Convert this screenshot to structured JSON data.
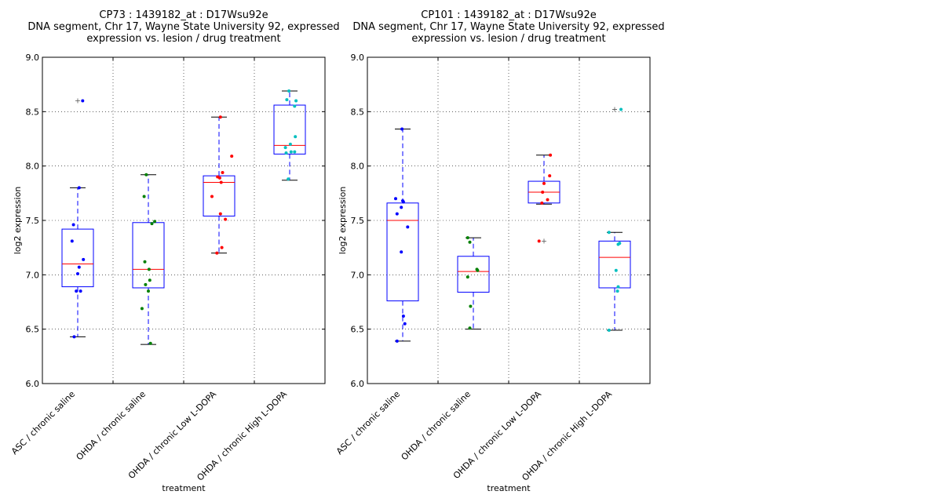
{
  "chart_data": [
    {
      "type": "boxplot",
      "title_lines": [
        "CP73 : 1439182_at : D17Wsu92e",
        "DNA segment, Chr 17, Wayne State University 92, expressed",
        "expression vs. lesion / drug treatment"
      ],
      "xlabel": "treatment",
      "ylabel": "log2 expression",
      "ylim": [
        6.0,
        9.0
      ],
      "yticks": [
        "6.0",
        "6.5",
        "7.0",
        "7.5",
        "8.0",
        "8.5",
        "9.0"
      ],
      "grid": true,
      "categories": [
        "ASC / chronic saline",
        "OHDA / chronic saline",
        "OHDA / chronic Low L-DOPA",
        "OHDA / chronic High L-DOPA"
      ],
      "point_colors": [
        "#0000ff",
        "#008000",
        "#ff0000",
        "#00bfbf"
      ],
      "boxes": [
        {
          "q1": 6.89,
          "median": 7.1,
          "q3": 7.42,
          "whisker_low": 6.43,
          "whisker_high": 7.8,
          "outliers": [
            8.6
          ]
        },
        {
          "q1": 6.88,
          "median": 7.05,
          "q3": 7.48,
          "whisker_low": 6.36,
          "whisker_high": 7.92,
          "outliers": []
        },
        {
          "q1": 7.54,
          "median": 7.85,
          "q3": 7.91,
          "whisker_low": 7.2,
          "whisker_high": 8.45,
          "outliers": []
        },
        {
          "q1": 8.11,
          "median": 8.19,
          "q3": 8.56,
          "whisker_low": 7.87,
          "whisker_high": 8.69,
          "outliers": []
        }
      ],
      "points": [
        [
          {
            "dx": -0.05,
            "y": 6.43
          },
          {
            "dx": -0.02,
            "y": 6.85
          },
          {
            "dx": 0.04,
            "y": 6.85
          },
          {
            "dx": 0.0,
            "y": 7.01
          },
          {
            "dx": 0.02,
            "y": 7.07
          },
          {
            "dx": 0.08,
            "y": 7.14
          },
          {
            "dx": -0.08,
            "y": 7.31
          },
          {
            "dx": -0.06,
            "y": 7.46
          },
          {
            "dx": 0.02,
            "y": 7.8
          },
          {
            "dx": 0.07,
            "y": 8.6
          }
        ],
        [
          {
            "dx": -0.09,
            "y": 6.69
          },
          {
            "dx": 0.03,
            "y": 6.37
          },
          {
            "dx": 0.0,
            "y": 6.85
          },
          {
            "dx": -0.04,
            "y": 6.91
          },
          {
            "dx": 0.02,
            "y": 6.95
          },
          {
            "dx": 0.01,
            "y": 7.05
          },
          {
            "dx": -0.05,
            "y": 7.12
          },
          {
            "dx": 0.05,
            "y": 7.47
          },
          {
            "dx": 0.09,
            "y": 7.49
          },
          {
            "dx": -0.06,
            "y": 7.72
          },
          {
            "dx": -0.03,
            "y": 7.92
          }
        ],
        [
          {
            "dx": -0.03,
            "y": 7.2
          },
          {
            "dx": 0.04,
            "y": 7.25
          },
          {
            "dx": 0.09,
            "y": 7.51
          },
          {
            "dx": 0.02,
            "y": 7.56
          },
          {
            "dx": -0.1,
            "y": 7.72
          },
          {
            "dx": 0.03,
            "y": 7.85
          },
          {
            "dx": 0.01,
            "y": 7.89
          },
          {
            "dx": -0.02,
            "y": 7.9
          },
          {
            "dx": 0.05,
            "y": 7.94
          },
          {
            "dx": 0.18,
            "y": 8.09
          },
          {
            "dx": 0.02,
            "y": 8.45
          }
        ],
        [
          {
            "dx": -0.02,
            "y": 7.88
          },
          {
            "dx": 0.07,
            "y": 8.13
          },
          {
            "dx": 0.02,
            "y": 8.13
          },
          {
            "dx": -0.05,
            "y": 8.12
          },
          {
            "dx": -0.06,
            "y": 8.17
          },
          {
            "dx": 0.01,
            "y": 8.2
          },
          {
            "dx": 0.08,
            "y": 8.27
          },
          {
            "dx": 0.07,
            "y": 8.55
          },
          {
            "dx": 0.09,
            "y": 8.6
          },
          {
            "dx": -0.04,
            "y": 8.61
          },
          {
            "dx": -0.01,
            "y": 8.69
          }
        ]
      ]
    },
    {
      "type": "boxplot",
      "title_lines": [
        "CP101 : 1439182_at : D17Wsu92e",
        "DNA segment, Chr 17, Wayne State University 92, expressed",
        "expression vs. lesion / drug treatment"
      ],
      "xlabel": "treatment",
      "ylabel": "log2 expression",
      "ylim": [
        6.0,
        9.0
      ],
      "yticks": [
        "6.0",
        "6.5",
        "7.0",
        "7.5",
        "8.0",
        "8.5",
        "9.0"
      ],
      "grid": true,
      "categories": [
        "ASC / chronic saline",
        "OHDA / chronic saline",
        "OHDA / chronic Low L-DOPA",
        "OHDA / chronic High L-DOPA"
      ],
      "point_colors": [
        "#0000ff",
        "#008000",
        "#ff0000",
        "#00bfbf"
      ],
      "boxes": [
        {
          "q1": 6.76,
          "median": 7.5,
          "q3": 7.66,
          "whisker_low": 6.39,
          "whisker_high": 8.34,
          "outliers": []
        },
        {
          "q1": 6.84,
          "median": 7.03,
          "q3": 7.17,
          "whisker_low": 6.5,
          "whisker_high": 7.34,
          "outliers": []
        },
        {
          "q1": 7.66,
          "median": 7.76,
          "q3": 7.86,
          "whisker_low": 7.65,
          "whisker_high": 8.1,
          "outliers": [
            7.31
          ]
        },
        {
          "q1": 6.88,
          "median": 7.16,
          "q3": 7.31,
          "whisker_low": 6.49,
          "whisker_high": 7.39,
          "outliers": [
            8.52
          ]
        }
      ],
      "points": [
        [
          {
            "dx": -0.08,
            "y": 6.39
          },
          {
            "dx": 0.03,
            "y": 6.55
          },
          {
            "dx": 0.01,
            "y": 6.62
          },
          {
            "dx": -0.02,
            "y": 7.21
          },
          {
            "dx": 0.07,
            "y": 7.44
          },
          {
            "dx": -0.08,
            "y": 7.56
          },
          {
            "dx": -0.02,
            "y": 7.62
          },
          {
            "dx": 0.01,
            "y": 7.67
          },
          {
            "dx": 0.0,
            "y": 7.68
          },
          {
            "dx": -0.1,
            "y": 7.7
          },
          {
            "dx": -0.01,
            "y": 8.34
          }
        ],
        [
          {
            "dx": -0.05,
            "y": 6.51
          },
          {
            "dx": -0.04,
            "y": 6.71
          },
          {
            "dx": -0.08,
            "y": 6.98
          },
          {
            "dx": 0.06,
            "y": 7.04
          },
          {
            "dx": 0.05,
            "y": 7.05
          },
          {
            "dx": -0.05,
            "y": 7.3
          },
          {
            "dx": -0.08,
            "y": 7.34
          }
        ],
        [
          {
            "dx": -0.07,
            "y": 7.31
          },
          {
            "dx": -0.03,
            "y": 7.66
          },
          {
            "dx": 0.05,
            "y": 7.69
          },
          {
            "dx": -0.02,
            "y": 7.76
          },
          {
            "dx": 0.0,
            "y": 7.84
          },
          {
            "dx": 0.08,
            "y": 7.91
          },
          {
            "dx": 0.09,
            "y": 8.1
          }
        ],
        [
          {
            "dx": -0.08,
            "y": 6.49
          },
          {
            "dx": 0.04,
            "y": 6.85
          },
          {
            "dx": 0.05,
            "y": 6.89
          },
          {
            "dx": 0.02,
            "y": 7.04
          },
          {
            "dx": 0.05,
            "y": 7.28
          },
          {
            "dx": 0.07,
            "y": 7.29
          },
          {
            "dx": -0.08,
            "y": 7.39
          },
          {
            "dx": 0.09,
            "y": 8.52
          }
        ]
      ]
    }
  ]
}
